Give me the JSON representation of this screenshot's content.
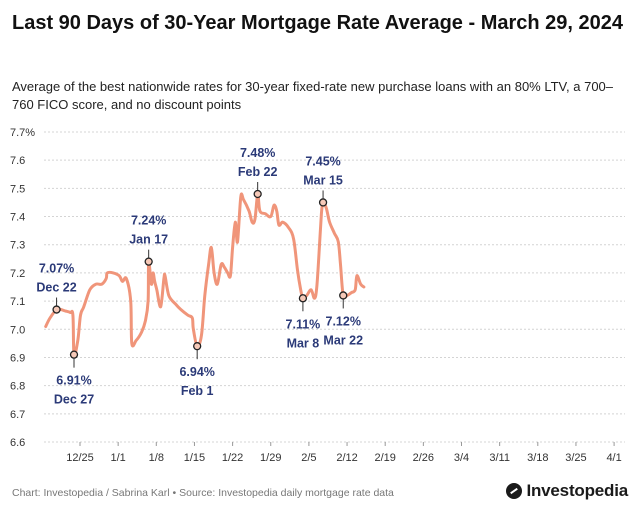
{
  "chart_data": {
    "type": "line",
    "title": "Last 90 Days of 30-Year Mortgage Rate Average - March 29, 2024",
    "subtitle": "Average of the best nationwide rates for 30-year fixed-rate new purchase loans with an 80% LTV, a 700–760 FICO score, and no discount points",
    "xlabel": "",
    "ylabel": "",
    "ylim": [
      6.6,
      7.7
    ],
    "yticks": [
      "6.6",
      "6.7",
      "6.8",
      "6.9",
      "7.0",
      "7.1",
      "7.2",
      "7.3",
      "7.4",
      "7.5",
      "7.6",
      "7.7%"
    ],
    "xticks": [
      "12/25",
      "1/1",
      "1/8",
      "1/15",
      "1/22",
      "1/29",
      "2/5",
      "2/12",
      "2/19",
      "2/26",
      "3/4",
      "3/11",
      "3/18",
      "3/25",
      "4/1"
    ],
    "x_start_label": "12/25",
    "series": [
      {
        "name": "30-Year Mortgage Rate Average",
        "color": "#f0957a",
        "values": [
          [
            -6.3,
            7.01
          ],
          [
            -5.5,
            7.04
          ],
          [
            -4.3,
            7.07
          ],
          [
            -3.5,
            7.07
          ],
          [
            -2.7,
            7.065
          ],
          [
            -1.8,
            7.06
          ],
          [
            -1.3,
            7.05
          ],
          [
            -1.1,
            6.91
          ],
          [
            -0.4,
            6.96
          ],
          [
            0.1,
            7.05
          ],
          [
            0.7,
            7.08
          ],
          [
            1.8,
            7.14
          ],
          [
            2.9,
            7.16
          ],
          [
            4.0,
            7.16
          ],
          [
            4.8,
            7.18
          ],
          [
            5.0,
            7.2
          ],
          [
            6.1,
            7.2
          ],
          [
            7.2,
            7.19
          ],
          [
            7.8,
            7.17
          ],
          [
            8.5,
            7.18
          ],
          [
            9.3,
            7.1
          ],
          [
            9.5,
            6.95
          ],
          [
            10.3,
            6.96
          ],
          [
            11.3,
            6.99
          ],
          [
            12.0,
            7.03
          ],
          [
            12.5,
            7.1
          ],
          [
            12.6,
            7.24
          ],
          [
            13.1,
            7.16
          ],
          [
            13.4,
            7.2
          ],
          [
            13.7,
            7.17
          ],
          [
            14.1,
            7.14
          ],
          [
            14.8,
            7.08
          ],
          [
            15.4,
            7.18
          ],
          [
            15.6,
            7.19
          ],
          [
            16.3,
            7.12
          ],
          [
            17.5,
            7.09
          ],
          [
            18.5,
            7.07
          ],
          [
            19.8,
            7.05
          ],
          [
            20.6,
            7.04
          ],
          [
            20.8,
            7.0
          ],
          [
            21.5,
            6.94
          ],
          [
            22.3,
            6.98
          ],
          [
            22.9,
            7.12
          ],
          [
            23.6,
            7.23
          ],
          [
            24.1,
            7.29
          ],
          [
            24.6,
            7.2
          ],
          [
            25.2,
            7.16
          ],
          [
            25.9,
            7.23
          ],
          [
            26.5,
            7.22
          ],
          [
            27.1,
            7.2
          ],
          [
            27.6,
            7.19
          ],
          [
            28.0,
            7.29
          ],
          [
            28.5,
            7.38
          ],
          [
            28.9,
            7.31
          ],
          [
            29.5,
            7.47
          ],
          [
            30.0,
            7.46
          ],
          [
            31.0,
            7.42
          ],
          [
            31.6,
            7.38
          ],
          [
            32.1,
            7.39
          ],
          [
            32.6,
            7.48
          ],
          [
            33.0,
            7.42
          ],
          [
            34.0,
            7.41
          ],
          [
            35.0,
            7.4
          ],
          [
            35.6,
            7.44
          ],
          [
            36.1,
            7.42
          ],
          [
            36.5,
            7.37
          ],
          [
            37.2,
            7.38
          ],
          [
            38.3,
            7.36
          ],
          [
            39.2,
            7.32
          ],
          [
            39.9,
            7.21
          ],
          [
            40.5,
            7.14
          ],
          [
            40.9,
            7.11
          ],
          [
            41.6,
            7.12
          ],
          [
            42.4,
            7.14
          ],
          [
            43.0,
            7.11
          ],
          [
            43.4,
            7.14
          ],
          [
            43.8,
            7.25
          ],
          [
            44.3,
            7.41
          ],
          [
            44.6,
            7.45
          ],
          [
            45.2,
            7.43
          ],
          [
            45.8,
            7.38
          ],
          [
            46.7,
            7.34
          ],
          [
            47.4,
            7.31
          ],
          [
            47.8,
            7.23
          ],
          [
            48.3,
            7.12
          ],
          [
            49.0,
            7.12
          ],
          [
            49.8,
            7.13
          ],
          [
            50.5,
            7.14
          ],
          [
            50.8,
            7.19
          ],
          [
            51.5,
            7.16
          ],
          [
            52.1,
            7.15
          ]
        ]
      }
    ],
    "annotations": [
      {
        "value": "7.07%",
        "date": "Dec 22",
        "x": -4.3,
        "y": 7.07,
        "pos": "above"
      },
      {
        "value": "6.91%",
        "date": "Dec 27",
        "x": -1.1,
        "y": 6.91,
        "pos": "below"
      },
      {
        "value": "7.24%",
        "date": "Jan 17",
        "x": 12.6,
        "y": 7.24,
        "pos": "above"
      },
      {
        "value": "6.94%",
        "date": "Feb 1",
        "x": 21.5,
        "y": 6.94,
        "pos": "below"
      },
      {
        "value": "7.48%",
        "date": "Feb 22",
        "x": 32.6,
        "y": 7.48,
        "pos": "above"
      },
      {
        "value": "7.11%",
        "date": "Mar 8",
        "x": 40.9,
        "y": 7.11,
        "pos": "below"
      },
      {
        "value": "7.45%",
        "date": "Mar 15",
        "x": 44.6,
        "y": 7.45,
        "pos": "above"
      },
      {
        "value": "7.12%",
        "date": "Mar 22",
        "x": 48.3,
        "y": 7.12,
        "pos": "below"
      }
    ]
  },
  "footer": {
    "source": "Chart: Investopedia / Sabrina Karl • Source: Investopedia daily mortgage rate data",
    "logo": "Investopedia"
  }
}
